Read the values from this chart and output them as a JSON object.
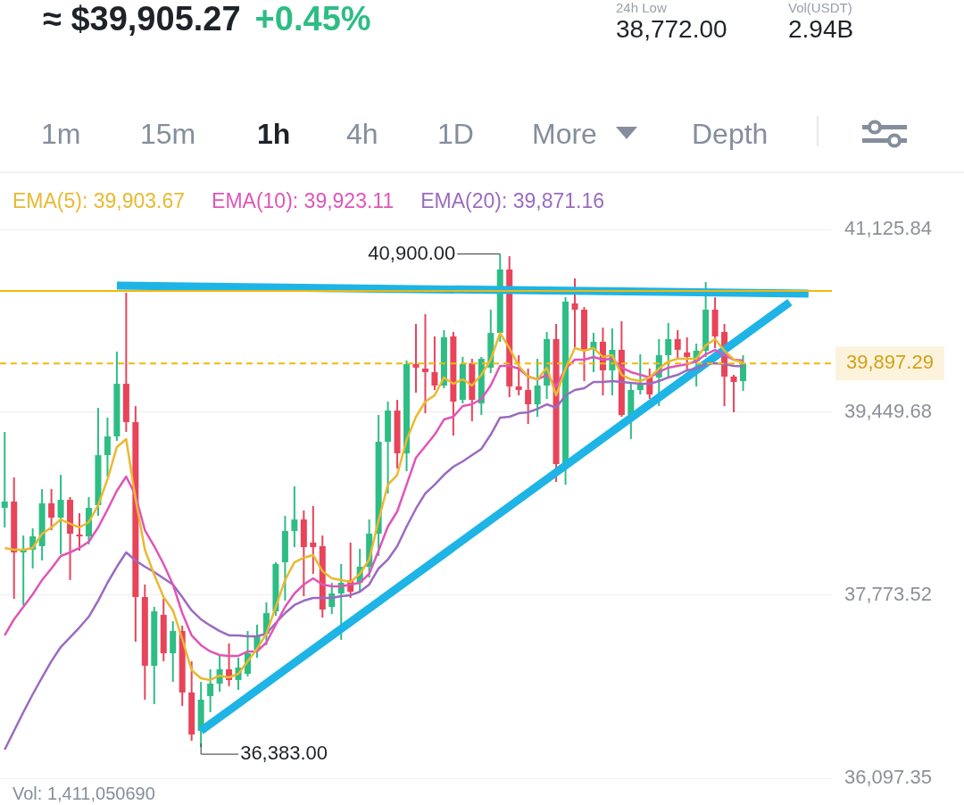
{
  "chart_data": {
    "type": "candlestick",
    "categories": [
      null,
      null,
      null,
      null,
      null,
      null,
      null,
      null,
      null,
      null,
      null,
      null,
      null,
      null,
      null,
      null,
      null,
      null,
      null,
      null,
      null,
      null,
      null,
      null,
      null,
      null,
      null,
      null,
      null,
      null,
      null,
      null,
      null,
      null,
      null,
      null,
      null,
      null,
      null,
      null,
      null,
      null,
      null,
      null,
      null,
      null,
      null,
      null,
      null,
      null,
      null,
      null,
      null,
      null,
      null,
      null,
      null,
      null,
      null,
      null,
      null,
      null,
      null,
      null,
      null,
      null,
      null,
      null,
      null,
      null,
      null,
      null,
      null,
      null,
      null,
      null,
      null,
      null,
      null,
      null,
      null,
      null,
      null,
      null,
      null,
      null,
      null,
      null,
      null
    ],
    "ohlc": [
      [
        38575,
        39270,
        38395,
        38632
      ],
      [
        38632,
        38853,
        37741,
        38166
      ],
      [
        38166,
        38321,
        37683,
        38191
      ],
      [
        38191,
        38387,
        38019,
        38313
      ],
      [
        38223,
        38746,
        38092,
        38616
      ],
      [
        38616,
        38746,
        38370,
        38485
      ],
      [
        38485,
        38877,
        38150,
        38648
      ],
      [
        38648,
        38673,
        37913,
        38338
      ],
      [
        38330,
        38526,
        38182,
        38313
      ],
      [
        38313,
        38673,
        38240,
        38575
      ],
      [
        38599,
        39491,
        38501,
        39057
      ],
      [
        39057,
        39401,
        38861,
        39229
      ],
      [
        39229,
        40006,
        39188,
        39711
      ],
      [
        39711,
        40545,
        39270,
        39360
      ],
      [
        39360,
        39507,
        37349,
        37757
      ],
      [
        37757,
        37872,
        36817,
        37128
      ],
      [
        37128,
        37667,
        36776,
        37627
      ],
      [
        37594,
        37741,
        37169,
        37242
      ],
      [
        37242,
        37536,
        36980,
        37446
      ],
      [
        37446,
        37495,
        36760,
        36883
      ],
      [
        36883,
        37169,
        36441,
        36498
      ],
      [
        36531,
        36980,
        36383,
        36817
      ],
      [
        36850,
        37095,
        36702,
        36964
      ],
      [
        36964,
        37218,
        36891,
        37095
      ],
      [
        37095,
        37332,
        36940,
        36997
      ],
      [
        36997,
        37201,
        36907,
        37111
      ],
      [
        37054,
        37446,
        37030,
        37242
      ],
      [
        37275,
        37504,
        37201,
        37398
      ],
      [
        37422,
        37708,
        37316,
        37610
      ],
      [
        37627,
        38076,
        37586,
        38060
      ],
      [
        38076,
        38501,
        37724,
        38362
      ],
      [
        38362,
        38771,
        38215,
        38468
      ],
      [
        38468,
        38550,
        37765,
        38215
      ],
      [
        38256,
        38591,
        37970,
        38215
      ],
      [
        38223,
        38321,
        37569,
        37643
      ],
      [
        37667,
        37888,
        37602,
        37790
      ],
      [
        37790,
        38060,
        37365,
        37888
      ],
      [
        37913,
        38256,
        37749,
        37806
      ],
      [
        37888,
        38199,
        37806,
        38035
      ],
      [
        38035,
        38468,
        37937,
        38338
      ],
      [
        38338,
        39425,
        38133,
        39180
      ],
      [
        39180,
        39548,
        38706,
        39466
      ],
      [
        39466,
        39564,
        38935,
        39074
      ],
      [
        39074,
        39924,
        38910,
        39891
      ],
      [
        39891,
        40259,
        39630,
        39859
      ],
      [
        39850,
        40349,
        39441,
        39818
      ],
      [
        39818,
        40145,
        39654,
        39695
      ],
      [
        39695,
        40202,
        39670,
        40137
      ],
      [
        40145,
        40186,
        39237,
        39548
      ],
      [
        39564,
        39957,
        39531,
        39891
      ],
      [
        39899,
        39940,
        39368,
        39564
      ],
      [
        39531,
        39957,
        39425,
        39940
      ],
      [
        39859,
        40390,
        39809,
        40177
      ],
      [
        40177,
        40900,
        40096,
        40758
      ],
      [
        40758,
        40880,
        39589,
        39687
      ],
      [
        39687,
        39973,
        39605,
        39654
      ],
      [
        39654,
        39850,
        39343,
        39523
      ],
      [
        39523,
        39940,
        39409,
        39695
      ],
      [
        39695,
        40186,
        39572,
        40120
      ],
      [
        40120,
        40259,
        38812,
        38975
      ],
      [
        38975,
        40504,
        38787,
        40464
      ],
      [
        40447,
        40676,
        40038,
        40390
      ],
      [
        40390,
        40414,
        39736,
        40022
      ],
      [
        40022,
        40177,
        39818,
        40096
      ],
      [
        40096,
        40226,
        39605,
        39834
      ],
      [
        39834,
        40218,
        39605,
        40022
      ],
      [
        40022,
        40284,
        39409,
        39425
      ],
      [
        39425,
        39711,
        39204,
        39654
      ],
      [
        39654,
        39981,
        39613,
        39711
      ],
      [
        39769,
        39850,
        39572,
        39613
      ],
      [
        39769,
        40120,
        39507,
        39973
      ],
      [
        39973,
        40267,
        39777,
        40120
      ],
      [
        40120,
        40202,
        39940,
        40022
      ],
      [
        39998,
        40137,
        39834,
        39957
      ],
      [
        39916,
        40079,
        39687,
        40014
      ],
      [
        40014,
        40643,
        39957,
        40390
      ],
      [
        40390,
        40504,
        40038,
        40145
      ],
      [
        40186,
        40259,
        39507,
        39777
      ],
      [
        39777,
        39793,
        39450,
        39728
      ],
      [
        39736,
        39973,
        39646,
        39897
      ],
      null,
      null,
      null,
      null,
      null,
      null,
      null,
      null,
      null
    ],
    "series": [
      {
        "type": "line",
        "name": "EMA(5): 39,903.67",
        "color": "#e9b930",
        "values": [
          38207,
          38191,
          38191,
          38207,
          38338,
          38395,
          38468,
          38428,
          38395,
          38444,
          38599,
          38836,
          39131,
          39204,
          38657,
          38191,
          37962,
          37757,
          37635,
          37373,
          37087,
          37013,
          36997,
          37038,
          37021,
          37054,
          37169,
          37283,
          37422,
          37667,
          37913,
          38076,
          38117,
          38142,
          37994,
          37929,
          37913,
          37896,
          37970,
          38101,
          38460,
          38787,
          38877,
          39196,
          39409,
          39548,
          39605,
          39769,
          39711,
          39752,
          39695,
          39793,
          39932,
          40177,
          40038,
          39875,
          39777,
          39752,
          39859,
          39605,
          39850,
          40038,
          40014,
          40038,
          39957,
          39973,
          39793,
          39752,
          39736,
          39769,
          39850,
          39916,
          39940,
          39940,
          39940,
          40063,
          40120,
          40014,
          39932,
          39904,
          null,
          null,
          null,
          null,
          null,
          null,
          null,
          null,
          null
        ]
      },
      {
        "type": "line",
        "name": "EMA(10): 39,923.11",
        "color": "#e055b8",
        "values": [
          37406,
          37553,
          37667,
          37782,
          37913,
          38019,
          38133,
          38166,
          38207,
          38264,
          38395,
          38558,
          38730,
          38861,
          38689,
          38370,
          38223,
          38060,
          37872,
          37610,
          37406,
          37316,
          37259,
          37226,
          37218,
          37218,
          37259,
          37259,
          37340,
          37504,
          37667,
          37790,
          37872,
          37929,
          37872,
          37855,
          37855,
          37872,
          37888,
          37970,
          38182,
          38403,
          38542,
          38787,
          39033,
          39139,
          39245,
          39384,
          39409,
          39507,
          39523,
          39572,
          39695,
          39875,
          39875,
          39850,
          39777,
          39752,
          39793,
          39687,
          39850,
          39932,
          39932,
          39957,
          39932,
          39940,
          39859,
          39818,
          39793,
          39769,
          39818,
          39859,
          39875,
          39891,
          39916,
          39981,
          40022,
          39973,
          39932,
          39923,
          null,
          null,
          null,
          null,
          null,
          null,
          null,
          null,
          null
        ]
      },
      {
        "type": "line",
        "name": "EMA(20): 39,871.16",
        "color": "#9a6bc0",
        "values": [
          36359,
          36531,
          36702,
          36866,
          37021,
          37169,
          37299,
          37389,
          37479,
          37577,
          37724,
          37888,
          38035,
          38166,
          38092,
          38035,
          37986,
          37929,
          37872,
          37757,
          37635,
          37553,
          37496,
          37446,
          37406,
          37406,
          37398,
          37398,
          37422,
          37520,
          37610,
          37684,
          37724,
          37749,
          37749,
          37749,
          37765,
          37774,
          37806,
          37872,
          38019,
          38101,
          38223,
          38403,
          38567,
          38706,
          38787,
          38877,
          38951,
          39000,
          39057,
          39115,
          39245,
          39401,
          39409,
          39441,
          39450,
          39482,
          39523,
          39491,
          39605,
          39654,
          39670,
          39728,
          39728,
          39736,
          39728,
          39719,
          39711,
          39711,
          39736,
          39769,
          39793,
          39834,
          39850,
          39891,
          39899,
          39891,
          39875,
          39871,
          null,
          null,
          null,
          null,
          null,
          null,
          null,
          null,
          null
        ]
      },
      {
        "type": "line",
        "color": "#1eb4e6",
        "values": [
          null,
          null,
          null,
          null,
          null,
          null,
          null,
          null,
          null,
          null,
          null,
          null,
          40611,
          null,
          null,
          null,
          null,
          null,
          null,
          null,
          null,
          null,
          null,
          null,
          null,
          null,
          null,
          null,
          null,
          null,
          null,
          null,
          null,
          null,
          null,
          null,
          null,
          null,
          null,
          null,
          null,
          null,
          null,
          null,
          null,
          null,
          null,
          null,
          null,
          null,
          null,
          null,
          null,
          null,
          null,
          null,
          null,
          null,
          null,
          null,
          null,
          null,
          null,
          null,
          null,
          null,
          null,
          null,
          null,
          null,
          null,
          null,
          null,
          null,
          null,
          null,
          null,
          null,
          null,
          null,
          null,
          null,
          null,
          null,
          null,
          null,
          40537,
          null,
          null
        ]
      },
      {
        "type": "line",
        "color": "#1eb4e6",
        "values": [
          null,
          null,
          null,
          null,
          null,
          null,
          null,
          null,
          null,
          null,
          null,
          null,
          null,
          null,
          null,
          null,
          null,
          null,
          null,
          null,
          null,
          36531,
          null,
          null,
          null,
          null,
          null,
          null,
          null,
          null,
          null,
          null,
          null,
          null,
          null,
          null,
          null,
          null,
          null,
          null,
          null,
          null,
          null,
          null,
          null,
          null,
          null,
          null,
          null,
          null,
          null,
          null,
          null,
          null,
          null,
          null,
          null,
          null,
          null,
          null,
          null,
          null,
          null,
          null,
          null,
          null,
          null,
          null,
          null,
          null,
          null,
          null,
          null,
          null,
          null,
          null,
          null,
          null,
          null,
          null,
          null,
          null,
          null,
          null,
          40458,
          null,
          null,
          null,
          null
        ]
      }
    ],
    "ylim": [
      36097.35,
      41125.84
    ],
    "yticks": [
      {
        "value": 41125.84,
        "label": "41,125.84"
      },
      {
        "value": 39449.68,
        "label": "39,449.68"
      },
      {
        "value": 37773.52,
        "label": "37,773.52"
      },
      {
        "value": 36097.35,
        "label": "36,097.35"
      }
    ],
    "grid": "y",
    "legend": "top",
    "tick_labels": "y",
    "ref_lines": [
      {
        "axis": "y",
        "value": 40562,
        "color": "#f0b90b",
        "line_style": "solid"
      },
      {
        "axis": "y",
        "value": 39897.29,
        "label": "39,897.29",
        "color": "#f0b90b",
        "line_style": "dashed"
      }
    ],
    "annotations": [
      "≈ $39,905.27",
      "+0.45%",
      "24h Low",
      "38,772.00",
      "Vol(USDT)",
      "2.94B",
      "1m",
      "15m",
      "1h",
      "4h",
      "1D",
      "More",
      "Depth",
      "Vol: 1,411,050690",
      "40,900.00",
      "36,383.00"
    ]
  }
}
